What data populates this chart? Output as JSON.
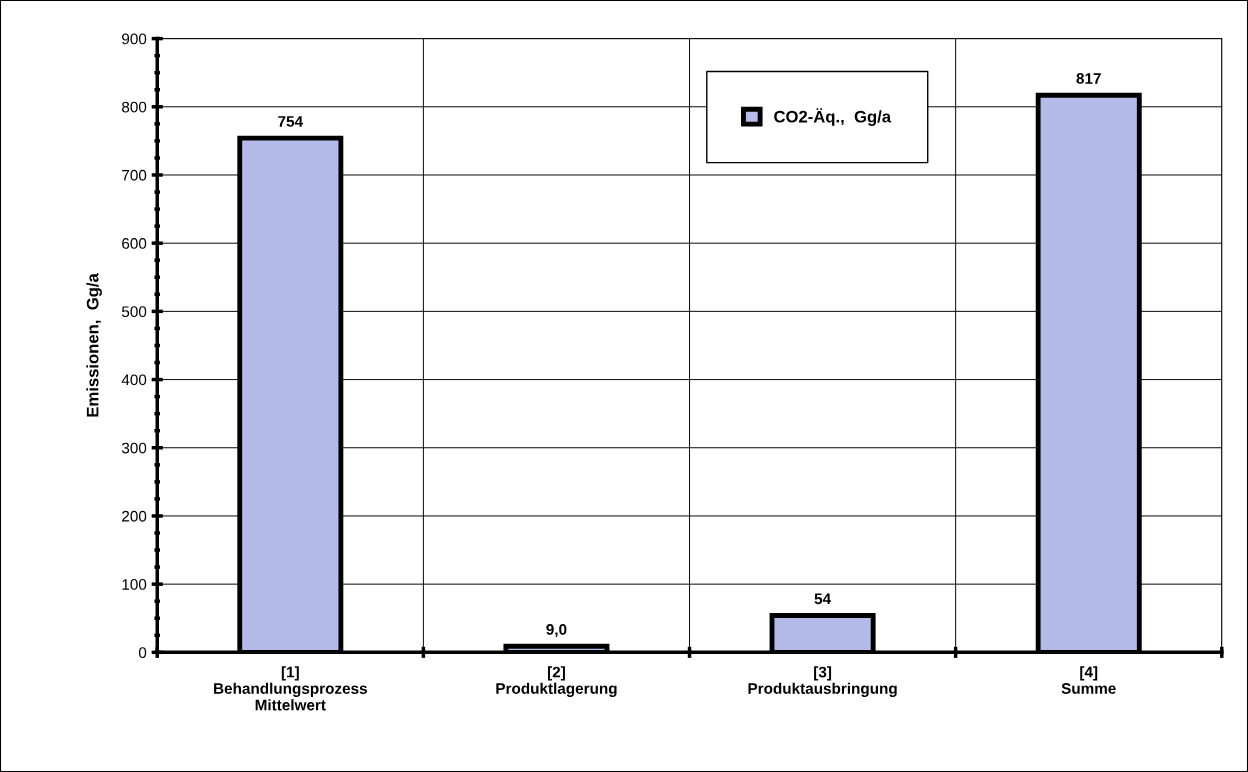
{
  "chart_data": {
    "type": "bar",
    "ylabel": "Emissionen,  Gg/a",
    "categories": [
      "[1]\nBehandlungsprozess\nMittelwert",
      "[2]\nProduktlagerung",
      "[3]\nProduktausbringung",
      "[4]\nSumme"
    ],
    "series": [
      {
        "name": "CO2-Äq.,  Gg/a",
        "color": "#b4bbe8",
        "values": [
          754,
          9.0,
          54,
          817
        ],
        "value_labels": [
          "754",
          "9,0",
          "54",
          "817"
        ]
      }
    ],
    "ylim": [
      0,
      900
    ],
    "yticks": [
      0,
      100,
      200,
      300,
      400,
      500,
      600,
      700,
      800,
      900
    ],
    "grid": true,
    "legend": "top"
  }
}
